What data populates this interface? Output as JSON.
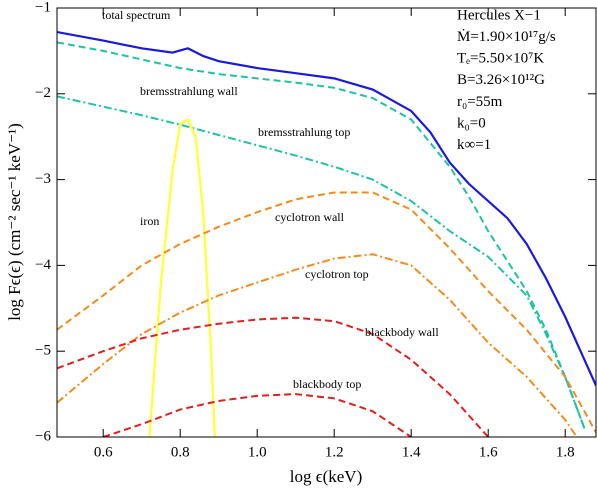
{
  "chart_data": {
    "type": "line",
    "xlabel": "log ϵ(keV)",
    "ylabel": "log Fϵ(ϵ) (cm⁻² sec⁻¹ keV⁻¹)",
    "xlim": [
      0.48,
      1.88
    ],
    "ylim": [
      -6,
      -1
    ],
    "xticks": [
      0.6,
      0.8,
      {
        "value": 1,
        "label": "1.0"
      },
      1.2,
      1.4,
      1.6,
      1.8
    ],
    "yticks": [
      {
        "value": -6,
        "label": "−6"
      },
      {
        "value": -5,
        "label": "−5"
      },
      {
        "value": -4,
        "label": "−4"
      },
      {
        "value": -3,
        "label": "−3"
      },
      {
        "value": -2,
        "label": "−2"
      },
      {
        "value": -1,
        "label": "−1"
      }
    ],
    "annotations": [
      "Hercules X−1",
      "Ṁ=1.90×10¹⁷g/s",
      "Tₑ=5.50×10⁷K",
      "B=3.26×10¹²G",
      "r₀=55m",
      "k₀=0",
      "k∞=1"
    ],
    "series": [
      {
        "name": "total spectrum",
        "color": "#1a1adf",
        "dash": "solid",
        "x": [
          0.48,
          0.6,
          0.7,
          0.78,
          0.82,
          0.86,
          0.9,
          1.0,
          1.1,
          1.2,
          1.3,
          1.4,
          1.45,
          1.5,
          1.55,
          1.6,
          1.65,
          1.7,
          1.75,
          1.8,
          1.85,
          1.88
        ],
        "values": [
          -1.28,
          -1.38,
          -1.47,
          -1.52,
          -1.47,
          -1.56,
          -1.62,
          -1.7,
          -1.76,
          -1.82,
          -1.95,
          -2.2,
          -2.45,
          -2.8,
          -3.05,
          -3.25,
          -3.45,
          -3.75,
          -4.15,
          -4.6,
          -5.1,
          -5.4
        ]
      },
      {
        "name": "bremsstrahlung wall",
        "color": "#1fc3a3",
        "dash": "dashed",
        "x": [
          0.48,
          0.6,
          0.7,
          0.8,
          0.9,
          1.0,
          1.1,
          1.2,
          1.3,
          1.4,
          1.5,
          1.55,
          1.6,
          1.65,
          1.7,
          1.75,
          1.8,
          1.85
        ],
        "values": [
          -1.4,
          -1.5,
          -1.6,
          -1.7,
          -1.77,
          -1.82,
          -1.87,
          -1.93,
          -2.05,
          -2.3,
          -2.85,
          -3.2,
          -3.6,
          -3.95,
          -4.3,
          -4.75,
          -5.3,
          -5.9
        ]
      },
      {
        "name": "bremsstrahlung top",
        "color": "#1fc3a3",
        "dash": "dashdot",
        "x": [
          0.48,
          0.6,
          0.7,
          0.8,
          0.9,
          1.0,
          1.1,
          1.2,
          1.3,
          1.4,
          1.5,
          1.6,
          1.7,
          1.75,
          1.8,
          1.85
        ],
        "values": [
          -2.03,
          -2.15,
          -2.25,
          -2.36,
          -2.48,
          -2.6,
          -2.72,
          -2.85,
          -3.0,
          -3.25,
          -3.6,
          -3.9,
          -4.35,
          -4.8,
          -5.3,
          -5.9
        ]
      },
      {
        "name": "iron",
        "color": "#ffff33",
        "dash": "solid",
        "x": [
          0.72,
          0.75,
          0.78,
          0.8,
          0.82,
          0.84,
          0.86,
          0.88,
          0.89
        ],
        "values": [
          -6.0,
          -4.2,
          -2.9,
          -2.35,
          -2.3,
          -2.5,
          -3.4,
          -5.0,
          -6.0
        ]
      },
      {
        "name": "cyclotron wall",
        "color": "#f28c1c",
        "dash": "dashed",
        "x": [
          0.48,
          0.6,
          0.7,
          0.8,
          0.9,
          1.0,
          1.1,
          1.2,
          1.3,
          1.4,
          1.5,
          1.6,
          1.7,
          1.8,
          1.85,
          1.88
        ],
        "values": [
          -4.75,
          -4.35,
          -4.0,
          -3.75,
          -3.55,
          -3.38,
          -3.23,
          -3.15,
          -3.15,
          -3.35,
          -3.8,
          -4.3,
          -4.75,
          -5.3,
          -5.7,
          -5.95
        ]
      },
      {
        "name": "cyclotron top",
        "color": "#f28c1c",
        "dash": "dashdot",
        "x": [
          0.48,
          0.6,
          0.7,
          0.8,
          0.9,
          1.0,
          1.1,
          1.2,
          1.3,
          1.4,
          1.5,
          1.6,
          1.7,
          1.8,
          1.83
        ],
        "values": [
          -5.6,
          -5.15,
          -4.8,
          -4.55,
          -4.35,
          -4.2,
          -4.05,
          -3.92,
          -3.87,
          -4.0,
          -4.4,
          -4.9,
          -5.3,
          -5.8,
          -6.0
        ]
      },
      {
        "name": "blackbody wall",
        "color": "#e0201c",
        "dash": "dashed",
        "x": [
          0.48,
          0.6,
          0.7,
          0.8,
          0.9,
          1.0,
          1.1,
          1.2,
          1.3,
          1.4,
          1.5,
          1.6
        ],
        "values": [
          -5.2,
          -5.0,
          -4.85,
          -4.75,
          -4.68,
          -4.63,
          -4.61,
          -4.65,
          -4.8,
          -5.1,
          -5.5,
          -6.0
        ]
      },
      {
        "name": "blackbody top",
        "color": "#e0201c",
        "dash": "dashed",
        "x": [
          0.6,
          0.7,
          0.8,
          0.9,
          1.0,
          1.1,
          1.2,
          1.3,
          1.4
        ],
        "values": [
          -6.0,
          -5.85,
          -5.68,
          -5.58,
          -5.52,
          -5.5,
          -5.55,
          -5.7,
          -6.0
        ]
      }
    ]
  }
}
